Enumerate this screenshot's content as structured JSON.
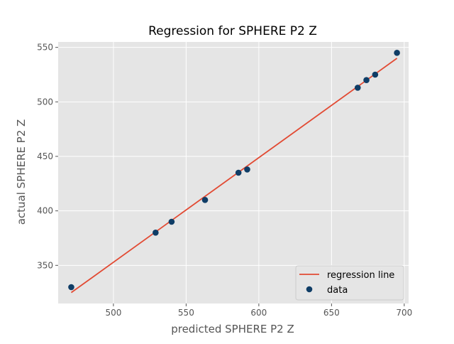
{
  "chart_data": {
    "type": "scatter",
    "title": "Regression for SPHERE P2 Z",
    "xlabel": "predicted SPHERE P2 Z",
    "ylabel": "actual SPHERE P2 Z",
    "xlim": [
      462,
      703
    ],
    "ylim": [
      315,
      555
    ],
    "xticks": [
      500,
      550,
      600,
      650,
      700
    ],
    "yticks": [
      350,
      400,
      450,
      500,
      550
    ],
    "grid": true,
    "legend_position": "bottom-right",
    "series": [
      {
        "name": "regression line",
        "kind": "line",
        "color": "#E24A33",
        "x": [
          471,
          695
        ],
        "y": [
          325,
          540
        ]
      },
      {
        "name": "data",
        "kind": "scatter",
        "color": "#0F3D66",
        "x": [
          471,
          529,
          540,
          563,
          586,
          592,
          668,
          674,
          680,
          695
        ],
        "y": [
          330,
          380,
          390,
          410,
          435,
          438,
          513,
          520,
          525,
          545
        ]
      }
    ]
  },
  "colors": {
    "plot_background": "#E5E5E5",
    "grid": "#FFFFFF",
    "tick_text": "#555555",
    "label_text": "#555555",
    "title_text": "#000000"
  }
}
